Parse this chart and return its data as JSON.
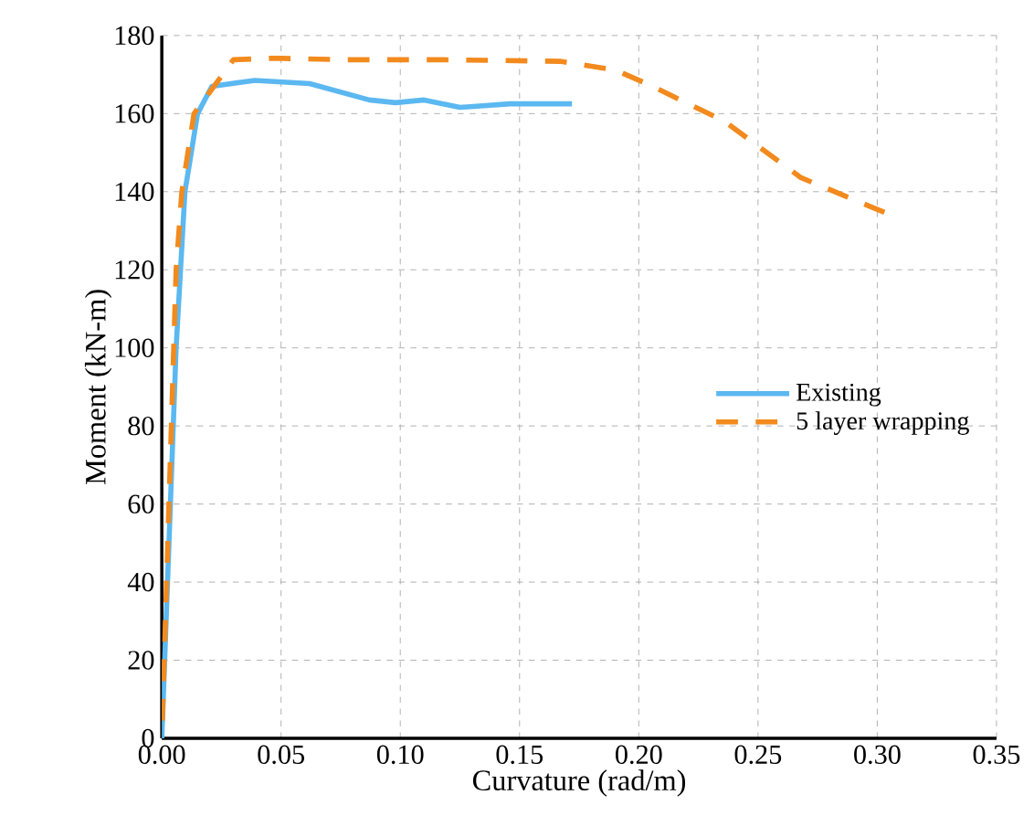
{
  "chart_data": {
    "type": "line",
    "xlabel": "Curvature (rad/m)",
    "ylabel": "Moment (kN-m)",
    "xlim": [
      0,
      0.35
    ],
    "ylim": [
      0,
      180
    ],
    "xticks": [
      {
        "value": 0,
        "label": "0.00"
      },
      {
        "value": 0.05,
        "label": "0.05"
      },
      {
        "value": 0.1,
        "label": "0.10"
      },
      {
        "value": 0.15,
        "label": "0.15"
      },
      {
        "value": 0.2,
        "label": "0.20"
      },
      {
        "value": 0.25,
        "label": "0.25"
      },
      {
        "value": 0.3,
        "label": "0.30"
      },
      {
        "value": 0.35,
        "label": "0.35"
      }
    ],
    "yticks": [
      0,
      20,
      40,
      60,
      80,
      100,
      120,
      140,
      160,
      180
    ],
    "grid": true,
    "legend": "right",
    "series": [
      {
        "name": "Existing",
        "color": "#5bb8f0",
        "line_style": "solid",
        "x": [
          0,
          0.006,
          0.0097,
          0.015,
          0.021,
          0.039,
          0.062,
          0.087,
          0.098,
          0.11,
          0.125,
          0.146,
          0.172
        ],
        "values": [
          0,
          100,
          140,
          160,
          167,
          168.5,
          167.7,
          163.5,
          162.8,
          163.5,
          161.6,
          162.5,
          162.5
        ]
      },
      {
        "name": "5 layer wrapping",
        "color": "#f28a1e",
        "line_style": "dashed",
        "x": [
          0,
          0.006,
          0.0084,
          0.0135,
          0.03,
          0.047,
          0.077,
          0.118,
          0.167,
          0.19,
          0.204,
          0.236,
          0.268,
          0.303
        ],
        "values": [
          0,
          120,
          140,
          160,
          173.8,
          174.2,
          173.8,
          173.8,
          173.4,
          171.2,
          167.5,
          158,
          143.6,
          134.7
        ]
      }
    ]
  }
}
